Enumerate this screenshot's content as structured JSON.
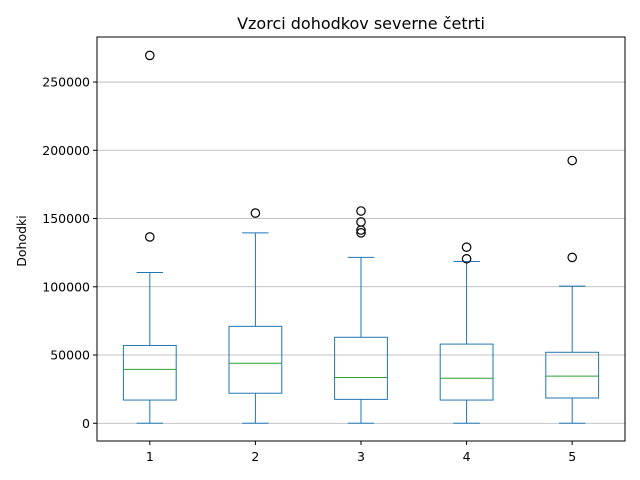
{
  "chart_data": {
    "type": "box",
    "title": "Vzorci dohodkov severne četrti",
    "xlabel": "",
    "ylabel": "Dohodki",
    "categories": [
      "1",
      "2",
      "3",
      "4",
      "5"
    ],
    "ylim": [
      -13000,
      283000
    ],
    "yticks": [
      0,
      50000,
      100000,
      150000,
      200000,
      250000
    ],
    "ytick_labels": [
      "0",
      "50000",
      "100000",
      "150000",
      "200000",
      "250000"
    ],
    "grid": "horizontal",
    "boxes": [
      {
        "category": "1",
        "whisker_low": 0,
        "q1": 17000,
        "median": 39500,
        "q3": 57000,
        "whisker_high": 110500,
        "outliers": [
          136500,
          269500
        ]
      },
      {
        "category": "2",
        "whisker_low": 0,
        "q1": 22000,
        "median": 44000,
        "q3": 71000,
        "whisker_high": 139500,
        "outliers": [
          154000
        ]
      },
      {
        "category": "3",
        "whisker_low": 0,
        "q1": 17500,
        "median": 33500,
        "q3": 63000,
        "whisker_high": 121500,
        "outliers": [
          139500,
          141500,
          147500,
          155500
        ]
      },
      {
        "category": "4",
        "whisker_low": 0,
        "q1": 17000,
        "median": 33000,
        "q3": 58000,
        "whisker_high": 118500,
        "outliers": [
          120500,
          129000
        ]
      },
      {
        "category": "5",
        "whisker_low": 0,
        "q1": 18500,
        "median": 34500,
        "q3": 52000,
        "whisker_high": 100500,
        "outliers": [
          121500,
          192500
        ]
      }
    ],
    "colors": {
      "box": "#1f77b4",
      "median": "#2ca02c",
      "outlier": "#000000",
      "grid": "#b0b0b0"
    }
  }
}
